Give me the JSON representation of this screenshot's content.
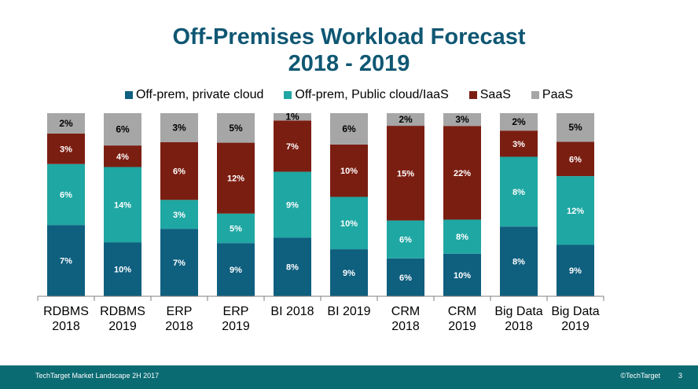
{
  "title_line1": "Off-Premises Workload Forecast",
  "title_line2": "2018 - 2019",
  "footer": {
    "left": "TechTarget Market Landscape 2H 2017",
    "right": "©TechTarget",
    "page": "3"
  },
  "chart_data": {
    "type": "bar",
    "stacked": true,
    "percent_stacked": true,
    "categories": [
      [
        "RDBMS",
        "2018"
      ],
      [
        "RDBMS",
        "2019"
      ],
      [
        "ERP",
        "2018"
      ],
      [
        "ERP",
        "2019"
      ],
      [
        "BI 2018"
      ],
      [
        "BI 2019"
      ],
      [
        "CRM",
        "2018"
      ],
      [
        "CRM",
        "2019"
      ],
      [
        "Big Data",
        "2018"
      ],
      [
        "Big Data",
        "2019"
      ]
    ],
    "series": [
      {
        "name": "Off-prem, private cloud",
        "color": "#0f5f7f",
        "values": [
          7,
          10,
          7,
          9,
          8,
          9,
          6,
          10,
          8,
          9
        ]
      },
      {
        "name": "Off-prem, Public cloud/IaaS",
        "color": "#1fa7a3",
        "values": [
          6,
          14,
          3,
          5,
          9,
          10,
          6,
          8,
          8,
          12
        ]
      },
      {
        "name": "SaaS",
        "color": "#7b1e12",
        "values": [
          3,
          4,
          6,
          12,
          7,
          10,
          15,
          22,
          3,
          6
        ]
      },
      {
        "name": "PaaS",
        "color": "#a6a6a6",
        "values": [
          2,
          6,
          3,
          5,
          1,
          6,
          2,
          3,
          2,
          5
        ]
      }
    ],
    "value_suffix": "%",
    "legend_position": "top",
    "grid": false
  }
}
